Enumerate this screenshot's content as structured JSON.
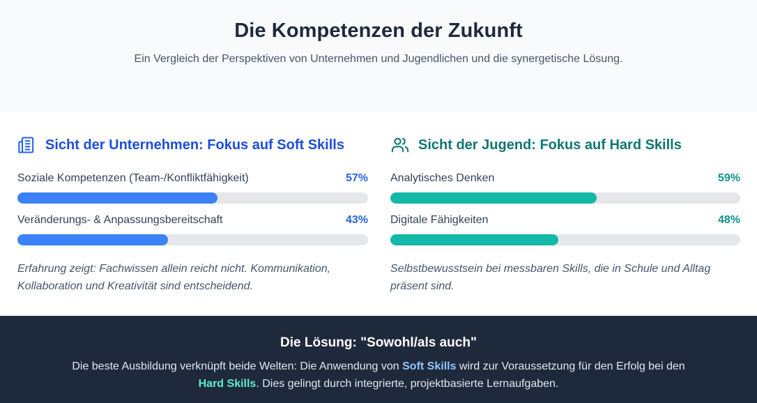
{
  "header": {
    "title": "Die Kompetenzen der Zukunft",
    "subtitle": "Ein Vergleich der Perspektiven von Unternehmen und Jugendlichen und die synergetische Lösung."
  },
  "companies": {
    "title": "Sicht der Unternehmen: Fokus auf Soft Skills",
    "icon": "building-icon",
    "accent": "#3b82f6",
    "metrics": [
      {
        "label": "Soziale Kompetenzen (Team-/Konfliktfähigkeit)",
        "value_text": "57%",
        "value": 57
      },
      {
        "label": "Veränderungs- & Anpassungsbereitschaft",
        "value_text": "43%",
        "value": 43
      }
    ],
    "note": "Erfahrung zeigt: Fachwissen allein reicht nicht. Kommunikation, Kollaboration und Kreativität sind entscheidend."
  },
  "youth": {
    "title": "Sicht der Jugend: Fokus auf Hard Skills",
    "icon": "users-icon",
    "accent": "#14b8a6",
    "metrics": [
      {
        "label": "Analytisches Denken",
        "value_text": "59%",
        "value": 59
      },
      {
        "label": "Digitale Fähigkeiten",
        "value_text": "48%",
        "value": 48
      }
    ],
    "note": "Selbstbewusstsein bei messbaren Skills, die in Schule und Alltag präsent sind."
  },
  "solution": {
    "title": "Die Lösung: \"Sowohl/als auch\"",
    "text_1": "Die beste Ausbildung verknüpft beide Welten: Die Anwendung von ",
    "soft": "Soft Skills",
    "text_2": " wird zur Voraussetzung für den Erfolg bei den ",
    "hard": "Hard Skills",
    "text_3": ". Dies gelingt durch integrierte, projektbasierte Lernaufgaben."
  }
}
